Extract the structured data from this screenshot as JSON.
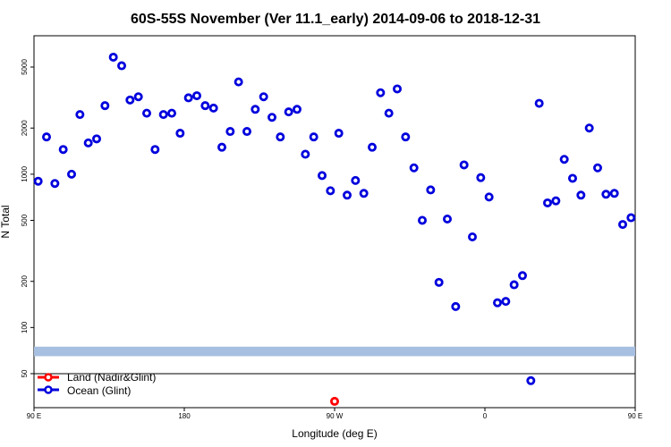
{
  "chart_data": {
    "type": "scatter",
    "title": "60S-55S November (Ver 11.1_early)   2014-09-06 to 2018-12-31",
    "xlabel": "Longitude (deg E)",
    "ylabel": "N Total",
    "xlim": [
      90,
      450
    ],
    "ylim": [
      30,
      8000
    ],
    "y_scale": "log",
    "x_ticks": [
      {
        "value": 90,
        "label": "90 E"
      },
      {
        "value": 180,
        "label": "180"
      },
      {
        "value": 270,
        "label": "90 W"
      },
      {
        "value": 360,
        "label": "0"
      },
      {
        "value": 450,
        "label": "90 E"
      },
      {
        "value": 540,
        "label": "180"
      }
    ],
    "y_ticks": [
      {
        "value": 50,
        "label": "50"
      },
      {
        "value": 100,
        "label": "100"
      },
      {
        "value": 200,
        "label": "200"
      },
      {
        "value": 500,
        "label": "500"
      },
      {
        "value": 1000,
        "label": "1000"
      },
      {
        "value": 2000,
        "label": "2000"
      },
      {
        "value": 5000,
        "label": "5000"
      }
    ],
    "band": {
      "y_low": 65,
      "y_high": 75,
      "color": "#a7bfe0"
    },
    "reference_line": 50,
    "legend": {
      "placement": "bottom-left",
      "entries": [
        {
          "name": "Land (Nadir&Glint)",
          "color": "#ff0000"
        },
        {
          "name": "Ocean (Glint)",
          "color": "#0000dd"
        }
      ]
    },
    "series": [
      {
        "name": "Land (Nadir&Glint)",
        "color": "#ff0000",
        "points": [
          [
            270,
            33
          ]
        ]
      },
      {
        "name": "Ocean (Glint)",
        "color": "#0000dd",
        "points": [
          [
            92.5,
            900
          ],
          [
            97.5,
            1750
          ],
          [
            102.5,
            870
          ],
          [
            107.5,
            1450
          ],
          [
            112.5,
            1000
          ],
          [
            117.5,
            2450
          ],
          [
            122.5,
            1600
          ],
          [
            127.5,
            1700
          ],
          [
            132.5,
            2800
          ],
          [
            137.5,
            5800
          ],
          [
            142.5,
            5100
          ],
          [
            147.5,
            3050
          ],
          [
            152.5,
            3200
          ],
          [
            157.5,
            2500
          ],
          [
            162.5,
            1450
          ],
          [
            167.5,
            2450
          ],
          [
            172.5,
            2500
          ],
          [
            177.5,
            1850
          ],
          [
            182.5,
            3150
          ],
          [
            187.5,
            3250
          ],
          [
            192.5,
            2800
          ],
          [
            197.5,
            2700
          ],
          [
            202.5,
            1500
          ],
          [
            207.5,
            1900
          ],
          [
            212.5,
            4000
          ],
          [
            217.5,
            1900
          ],
          [
            222.5,
            2650
          ],
          [
            227.5,
            3200
          ],
          [
            232.5,
            2350
          ],
          [
            237.5,
            1750
          ],
          [
            242.5,
            2550
          ],
          [
            247.5,
            2650
          ],
          [
            252.5,
            1350
          ],
          [
            257.5,
            1750
          ],
          [
            262.5,
            980
          ],
          [
            267.5,
            780
          ],
          [
            272.5,
            1850
          ],
          [
            277.5,
            730
          ],
          [
            282.5,
            910
          ],
          [
            287.5,
            750
          ],
          [
            292.5,
            1500
          ],
          [
            297.5,
            3400
          ],
          [
            302.5,
            2500
          ],
          [
            307.5,
            3600
          ],
          [
            312.5,
            1750
          ],
          [
            317.5,
            1100
          ],
          [
            322.5,
            500
          ],
          [
            327.5,
            790
          ],
          [
            332.5,
            197
          ],
          [
            337.5,
            510
          ],
          [
            342.5,
            137
          ],
          [
            347.5,
            1150
          ],
          [
            352.5,
            390
          ],
          [
            357.5,
            950
          ],
          [
            362.5,
            710
          ],
          [
            367.5,
            145
          ],
          [
            372.5,
            148
          ],
          [
            377.5,
            190
          ],
          [
            382.5,
            218
          ],
          [
            387.5,
            45
          ],
          [
            392.5,
            2900
          ],
          [
            397.5,
            650
          ],
          [
            402.5,
            670
          ],
          [
            407.5,
            1250
          ],
          [
            412.5,
            940
          ],
          [
            417.5,
            730
          ],
          [
            422.5,
            2000
          ],
          [
            427.5,
            1100
          ],
          [
            432.5,
            740
          ],
          [
            437.5,
            750
          ],
          [
            442.5,
            470
          ],
          [
            447.5,
            520
          ]
        ]
      }
    ]
  }
}
